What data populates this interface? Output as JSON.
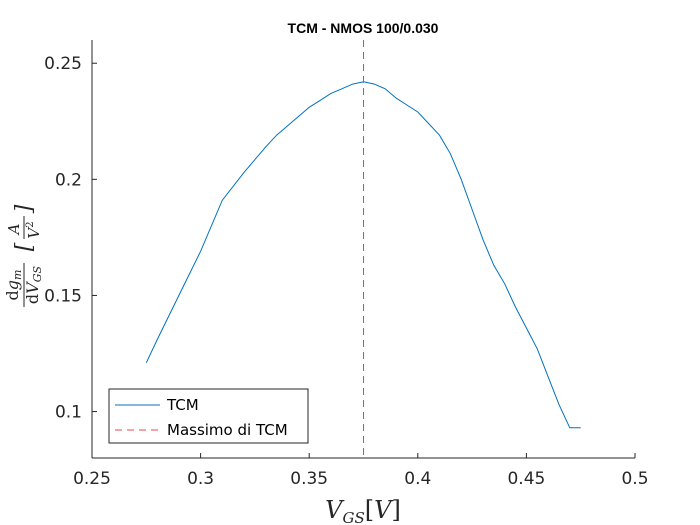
{
  "chart_data": {
    "type": "line",
    "title": "TCM - NMOS 100/0.030",
    "xlabel": "V_GS[V]",
    "ylabel": "dg_m/dV_GS [A/V^2]",
    "xlim": [
      0.25,
      0.5
    ],
    "ylim": [
      0.08,
      0.26
    ],
    "xticks": [
      0.25,
      0.3,
      0.35,
      0.4,
      0.45,
      0.5
    ],
    "xtick_labels": [
      "0.25",
      "0.3",
      "0.35",
      "0.4",
      "0.45",
      "0.5"
    ],
    "yticks": [
      0.1,
      0.15,
      0.2,
      0.25
    ],
    "ytick_labels": [
      "0.1",
      "0.15",
      "0.2",
      "0.25"
    ],
    "grid": false,
    "legend_position": "bottom-left",
    "series": [
      {
        "name": "TCM",
        "color": "#0072bd",
        "style": "solid",
        "x": [
          0.275,
          0.28,
          0.29,
          0.3,
          0.31,
          0.32,
          0.33,
          0.335,
          0.34,
          0.345,
          0.35,
          0.355,
          0.36,
          0.365,
          0.37,
          0.375,
          0.38,
          0.385,
          0.39,
          0.395,
          0.4,
          0.405,
          0.41,
          0.415,
          0.42,
          0.425,
          0.43,
          0.435,
          0.44,
          0.445,
          0.45,
          0.455,
          0.46,
          0.465,
          0.47,
          0.475
        ],
        "y": [
          0.121,
          0.131,
          0.15,
          0.169,
          0.191,
          0.203,
          0.214,
          0.219,
          0.223,
          0.227,
          0.231,
          0.234,
          0.237,
          0.239,
          0.241,
          0.242,
          0.241,
          0.239,
          0.235,
          0.232,
          0.229,
          0.224,
          0.219,
          0.211,
          0.2,
          0.187,
          0.174,
          0.163,
          0.155,
          0.145,
          0.136,
          0.127,
          0.115,
          0.103,
          0.093,
          0.093
        ]
      },
      {
        "name": "Massimo di TCM",
        "color": "#e8464b",
        "style": "dashed",
        "vertical_x": 0.375
      }
    ]
  }
}
